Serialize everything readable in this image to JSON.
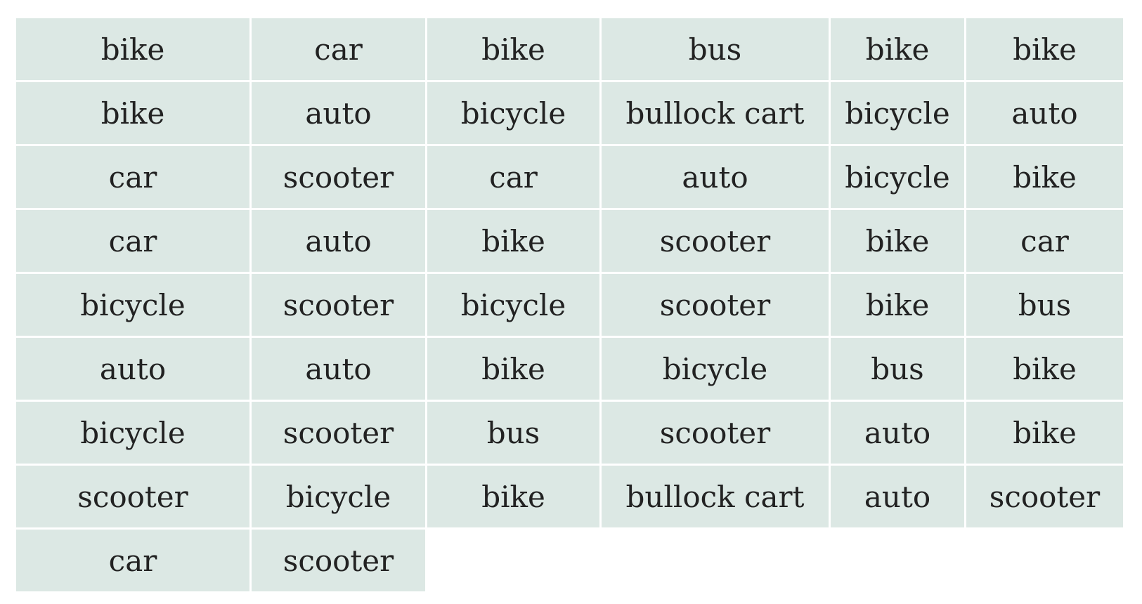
{
  "table": {
    "rows": [
      [
        "bike",
        "car",
        "bike",
        "bus",
        "bike",
        "bike"
      ],
      [
        "bike",
        "auto",
        "bicycle",
        "bullock cart",
        "bicycle",
        "auto"
      ],
      [
        "car",
        "scooter",
        "car",
        "auto",
        "bicycle",
        "bike"
      ],
      [
        "car",
        "auto",
        "bike",
        "scooter",
        "bike",
        "car"
      ],
      [
        "bicycle",
        "scooter",
        "bicycle",
        "scooter",
        "bike",
        "bus"
      ],
      [
        "auto",
        "auto",
        "bike",
        "bicycle",
        "bus",
        "bike"
      ],
      [
        "bicycle",
        "scooter",
        "bus",
        "scooter",
        "auto",
        "bike"
      ],
      [
        "scooter",
        "bicycle",
        "bike",
        "bullock cart",
        "auto",
        "scooter"
      ],
      [
        "car",
        "scooter"
      ]
    ]
  }
}
